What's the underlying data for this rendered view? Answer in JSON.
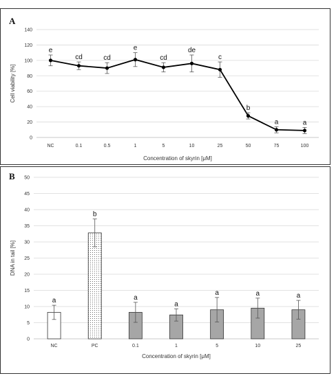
{
  "chart_data": [
    {
      "panel_label": "A",
      "type": "line",
      "categories": [
        "NC",
        "0.1",
        "0.5",
        "1",
        "5",
        "10",
        "25",
        "50",
        "75",
        "100"
      ],
      "values": [
        100,
        93,
        90,
        101,
        91,
        96,
        88,
        28,
        10,
        9
      ],
      "errors": [
        7,
        5,
        7,
        9,
        6,
        11,
        10,
        4,
        4,
        4
      ],
      "letters": [
        "e",
        "cd",
        "cd",
        "e",
        "cd",
        "de",
        "c",
        "b",
        "a",
        "a"
      ],
      "ylabel": "Cell viability [%]",
      "xlabel": "Concentration of skyrin [μM]",
      "ylim": [
        0,
        140
      ],
      "yticks": [
        0,
        20,
        40,
        60,
        80,
        100,
        120,
        140
      ],
      "grid": true,
      "line_color": "#000000"
    },
    {
      "panel_label": "B",
      "type": "bar",
      "categories": [
        "NC",
        "PC",
        "0.1",
        "1",
        "5",
        "10",
        "25"
      ],
      "values": [
        8.2,
        32.8,
        8.2,
        7.4,
        9.0,
        9.5,
        9.0
      ],
      "errors": [
        2.2,
        4.3,
        3.1,
        1.9,
        3.8,
        3.1,
        2.9
      ],
      "letters": [
        "a",
        "b",
        "a",
        "a",
        "a",
        "a",
        "a"
      ],
      "bar_fills": [
        "white",
        "dotted",
        "gray",
        "gray",
        "gray",
        "gray",
        "gray"
      ],
      "ylabel": "DNA in tail [%]",
      "xlabel": "Concentration of skyrin [μM]",
      "ylim": [
        0,
        50
      ],
      "yticks": [
        0,
        5,
        10,
        15,
        20,
        25,
        30,
        35,
        40,
        45,
        50
      ],
      "grid": true,
      "bar_gray": "#a6a6a6"
    }
  ]
}
